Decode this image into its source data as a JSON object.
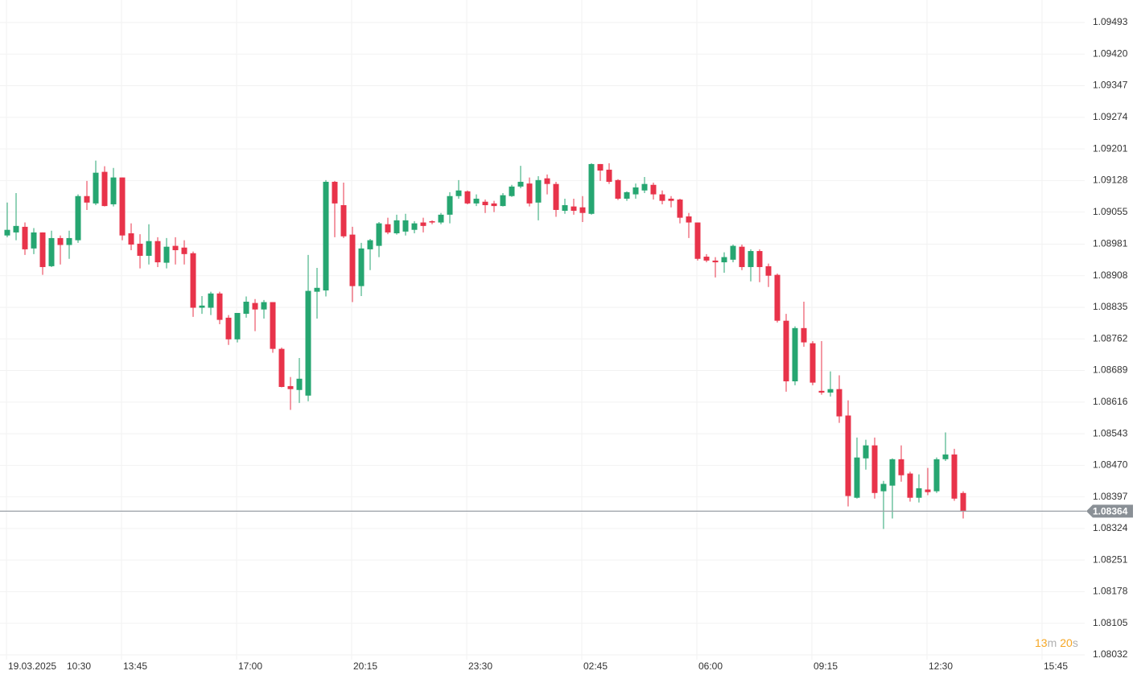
{
  "chart_data": {
    "type": "candlestick",
    "date_label": "19.03.2025",
    "xtick_labels": [
      "10:30",
      "13:45",
      "17:00",
      "20:15",
      "23:30",
      "02:45",
      "06:00",
      "09:15",
      "12:30",
      "15:45"
    ],
    "ylim": [
      1.08032,
      1.09493
    ],
    "yticks": [
      1.09493,
      {
        "value": 1.0942,
        "label": "1.09420"
      },
      1.09347,
      1.09274,
      1.09201,
      1.09128,
      1.09055,
      1.08981,
      1.08908,
      1.08835,
      1.08762,
      1.08689,
      1.08616,
      1.08543,
      {
        "value": 1.0847,
        "label": "1.08470"
      },
      1.08397,
      1.08324,
      1.08251,
      1.08178,
      1.08105,
      1.08032
    ],
    "grid": true,
    "up_color": "#26a671",
    "down_color": "#e8334a",
    "current_price": 1.08364,
    "countdown": [
      {
        "text": "13",
        "unit": "m"
      },
      {
        "text": "20",
        "unit": "s"
      }
    ],
    "open": [
      1.09001,
      1.09008,
      1.09021,
      1.08971,
      1.09008,
      1.0893,
      1.08995,
      1.08979,
      1.0899,
      1.09092,
      1.09075,
      1.09148,
      1.09073,
      1.09135,
      1.09006,
      1.08982,
      1.08954,
      1.08988,
      1.08938,
      1.08977,
      1.08973,
      1.0896,
      1.08834,
      1.08834,
      1.08867,
      1.08811,
      1.08761,
      1.0882,
      1.08845,
      1.0883,
      1.08847,
      1.08739,
      1.08653,
      1.08644,
      1.08631,
      1.08871,
      1.08874,
      1.09125,
      1.09071,
      1.09003,
      1.08884,
      1.08969,
      1.08977,
      1.09027,
      1.09006,
      1.0901,
      1.09014,
      1.09031,
      1.09034,
      1.09031,
      1.09049,
      1.09092,
      1.09103,
      1.09075,
      1.09079,
      1.09075,
      1.09069,
      1.09092,
      1.09114,
      1.09121,
      1.09077,
      1.09133,
      1.0912,
      1.09058,
      1.09068,
      1.09066,
      1.09051,
      1.09166,
      1.09153,
      1.09129,
      1.09086,
      1.09096,
      1.09105,
      1.09118,
      1.09096,
      1.09086,
      1.09084,
      1.09045,
      1.09031,
      1.08952,
      1.08943,
      1.08939,
      1.08945,
      1.08975,
      1.08928,
      1.08965,
      1.0893,
      1.0891,
      1.08804,
      1.08664,
      1.08787,
      1.08752,
      1.08642,
      1.08638,
      1.08646,
      1.08585,
      1.08395,
      1.08486,
      1.08516,
      1.0841,
      1.08423,
      1.08484,
      1.08451,
      1.08395,
      1.08414,
      1.0841,
      1.08484,
      1.08495,
      1.08406
    ],
    "high": [
      1.09077,
      1.09099,
      1.09031,
      1.09018,
      1.09008,
      1.09012,
      1.09001,
      1.09012,
      1.09096,
      1.09127,
      1.09174,
      1.09161,
      1.09157,
      1.09135,
      1.09029,
      1.09004,
      1.09027,
      1.08997,
      1.08995,
      1.08997,
      1.0899,
      1.08964,
      1.08861,
      1.08871,
      1.08871,
      1.08817,
      1.08822,
      1.0886,
      1.08854,
      1.08852,
      1.08847,
      1.08742,
      1.08674,
      1.08718,
      1.08956,
      1.08926,
      1.09129,
      1.09127,
      1.09123,
      1.09021,
      1.08984,
      1.08993,
      1.09032,
      1.09042,
      1.09049,
      1.09051,
      1.09034,
      1.09042,
      1.09036,
      1.09053,
      1.09101,
      1.09129,
      1.09105,
      1.09096,
      1.09084,
      1.09081,
      1.09099,
      1.09118,
      1.09162,
      1.09135,
      1.09138,
      1.09142,
      1.09125,
      1.09086,
      1.09086,
      1.09092,
      1.09168,
      1.09166,
      1.09168,
      1.09131,
      1.09103,
      1.09121,
      1.09136,
      1.09123,
      1.09105,
      1.09092,
      1.09086,
      1.09053,
      1.09031,
      1.08958,
      1.08951,
      1.08962,
      1.0898,
      1.0898,
      1.08969,
      1.08969,
      1.08936,
      1.08913,
      1.0882,
      1.08791,
      1.08848,
      1.08757,
      1.08757,
      1.08687,
      1.08678,
      1.0862,
      1.08534,
      1.08529,
      1.08534,
      1.08434,
      1.08486,
      1.08516,
      1.08455,
      1.08449,
      1.08464,
      1.08488,
      1.08546,
      1.08508,
      1.0841
    ],
    "low": [
      1.08997,
      1.0899,
      1.08956,
      1.08958,
      1.0891,
      1.08928,
      1.08934,
      1.08947,
      1.08984,
      1.0906,
      1.09071,
      1.09068,
      1.09068,
      1.0899,
      1.08967,
      1.08925,
      1.08934,
      1.08928,
      1.08925,
      1.08934,
      1.08934,
      1.08813,
      1.0882,
      1.08817,
      1.08796,
      1.08748,
      1.08754,
      1.08811,
      1.0878,
      1.08809,
      1.0873,
      1.0865,
      1.08598,
      1.08614,
      1.08618,
      1.08809,
      1.0886,
      1.08997,
      1.08995,
      1.08847,
      1.08861,
      1.08921,
      1.08951,
      1.09004,
      1.09003,
      1.09001,
      1.09006,
      1.09008,
      1.09027,
      1.09027,
      1.09029,
      1.09086,
      1.09073,
      1.09069,
      1.09053,
      1.09055,
      1.09068,
      1.0909,
      1.0911,
      1.09068,
      1.09036,
      1.09096,
      1.09044,
      1.09051,
      1.09049,
      1.09032,
      1.09049,
      1.09127,
      1.0912,
      1.09083,
      1.09081,
      1.09086,
      1.09099,
      1.09084,
      1.09073,
      1.09066,
      1.09029,
      1.08995,
      1.08943,
      1.08939,
      1.08904,
      1.08915,
      1.08939,
      1.08921,
      1.08895,
      1.08893,
      1.08882,
      1.088,
      1.0864,
      1.08655,
      1.08744,
      1.08655,
      1.08633,
      1.08629,
      1.08568,
      1.08375,
      1.08393,
      1.0846,
      1.08393,
      1.08323,
      1.08347,
      1.08432,
      1.08386,
      1.08384,
      1.08401,
      1.08406,
      1.0848,
      1.08388,
      1.08347
    ],
    "close": [
      1.09014,
      1.09023,
      1.08969,
      1.09008,
      1.08928,
      1.08995,
      1.08979,
      1.08995,
      1.09092,
      1.09077,
      1.09146,
      1.09069,
      1.09135,
      1.09001,
      1.0898,
      1.08954,
      1.08988,
      1.08939,
      1.08975,
      1.08967,
      1.08958,
      1.08834,
      1.08839,
      1.08867,
      1.08806,
      1.08761,
      1.08822,
      1.08848,
      1.0883,
      1.08847,
      1.08739,
      1.08651,
      1.08646,
      1.0867,
      1.08873,
      1.0888,
      1.09125,
      1.09075,
      1.08999,
      1.08884,
      1.08971,
      1.0899,
      1.09029,
      1.09008,
      1.09036,
      1.09036,
      1.09029,
      1.09023,
      1.09031,
      1.09049,
      1.09092,
      1.09105,
      1.09075,
      1.09086,
      1.09071,
      1.09069,
      1.09094,
      1.09114,
      1.09125,
      1.09075,
      1.09129,
      1.0912,
      1.0906,
      1.09071,
      1.09058,
      1.09053,
      1.09166,
      1.09151,
      1.09125,
      1.09086,
      1.09101,
      1.09112,
      1.0912,
      1.09096,
      1.09081,
      1.09081,
      1.09042,
      1.09031,
      1.08947,
      1.08943,
      1.08939,
      1.08951,
      1.08977,
      1.08928,
      1.08965,
      1.08928,
      1.08908,
      1.08804,
      1.08664,
      1.08787,
      1.08754,
      1.08661,
      1.08638,
      1.08646,
      1.08583,
      1.08399,
      1.08488,
      1.08516,
      1.08406,
      1.08427,
      1.08484,
      1.08447,
      1.08395,
      1.08417,
      1.08408,
      1.08484,
      1.08495,
      1.08393,
      1.08364
    ]
  }
}
